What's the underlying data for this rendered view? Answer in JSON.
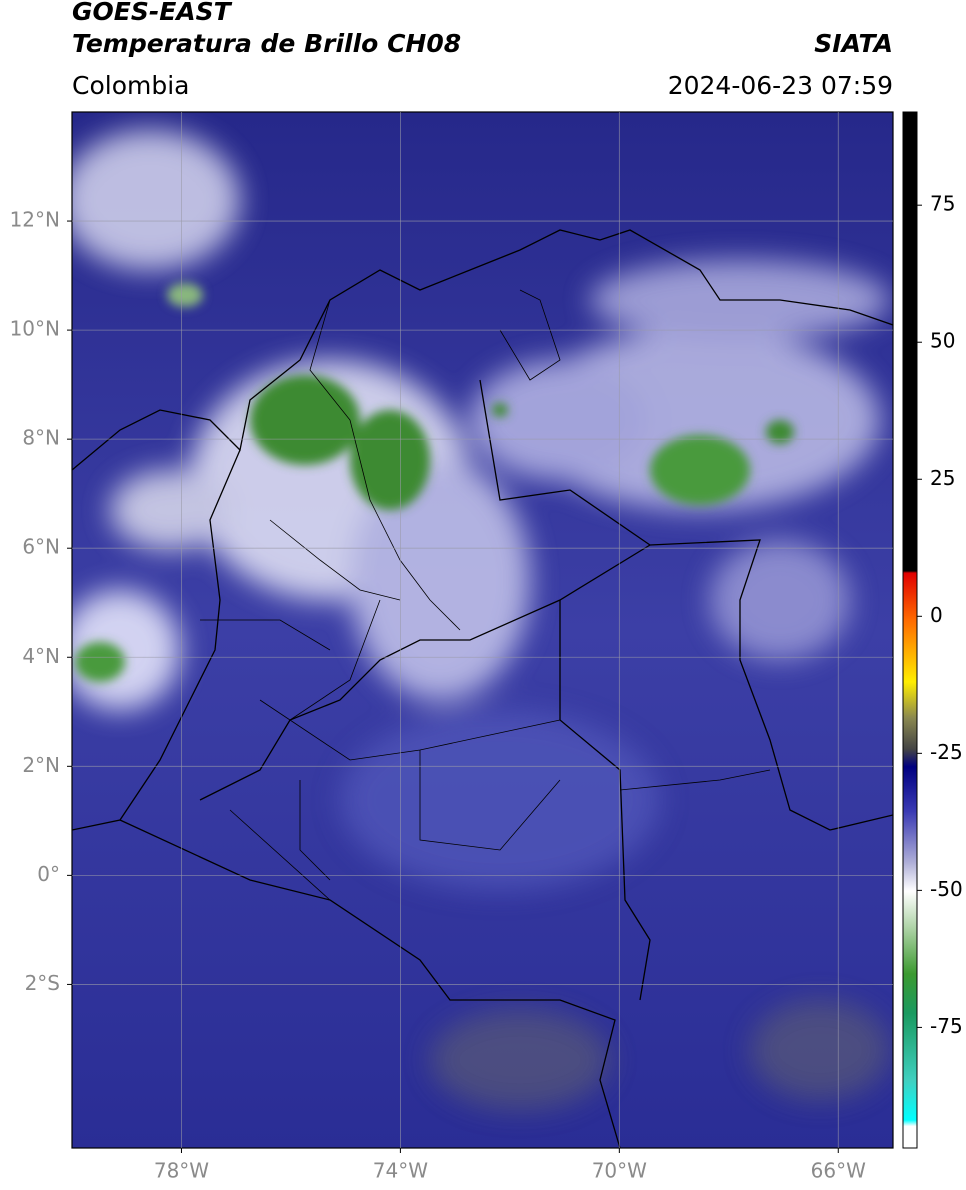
{
  "header": {
    "satellite": "GOES-EAST",
    "product": "Temperatura de Brillo CH08",
    "source": "SIATA",
    "region": "Colombia",
    "datetime": "2024-06-23 07:59"
  },
  "map": {
    "xlim": [
      -80,
      -65
    ],
    "ylim": [
      -5,
      14
    ],
    "xticks": [
      {
        "value": -78,
        "label": "78°W"
      },
      {
        "value": -74,
        "label": "74°W"
      },
      {
        "value": -70,
        "label": "70°W"
      },
      {
        "value": -66,
        "label": "66°W"
      }
    ],
    "yticks": [
      {
        "value": 12,
        "label": "12°N"
      },
      {
        "value": 10,
        "label": "10°N"
      },
      {
        "value": 8,
        "label": "8°N"
      },
      {
        "value": 6,
        "label": "6°N"
      },
      {
        "value": 4,
        "label": "4°N"
      },
      {
        "value": 2,
        "label": "2°N"
      },
      {
        "value": 0,
        "label": "0°"
      },
      {
        "value": -2,
        "label": "2°S"
      }
    ],
    "grid": true
  },
  "colorbar": {
    "clim": [
      -97,
      92
    ],
    "ticks": [
      75,
      50,
      25,
      0,
      -25,
      -50,
      -75
    ]
  }
}
